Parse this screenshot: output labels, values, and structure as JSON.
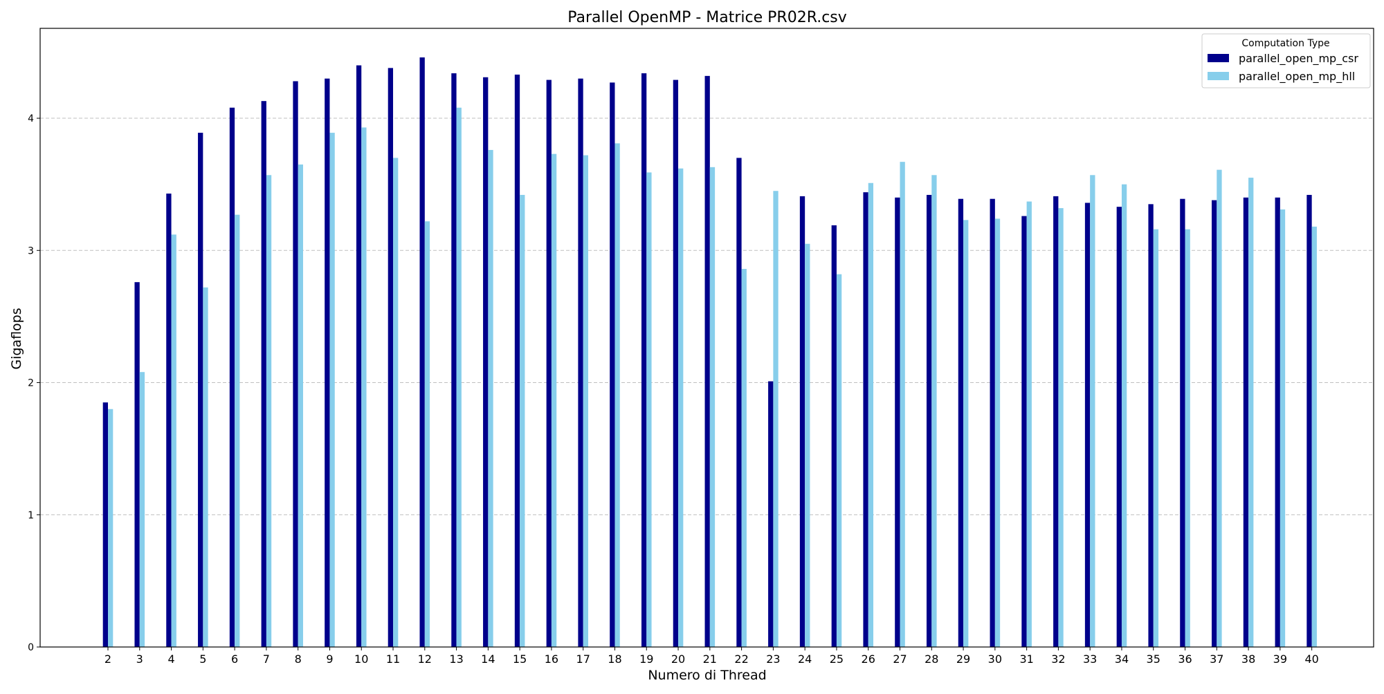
{
  "chart_data": {
    "type": "bar",
    "title": "Parallel OpenMP - Matrice PR02R.csv",
    "xlabel": "Numero di Thread",
    "ylabel": "Gigaflops",
    "ylim": [
      0,
      4.68
    ],
    "yticks": [
      0,
      1,
      2,
      3,
      4
    ],
    "grid": "y",
    "legend_placement": "top-right",
    "legend_title": "Computation Type",
    "categories": [
      "2",
      "3",
      "4",
      "5",
      "6",
      "7",
      "8",
      "9",
      "10",
      "11",
      "12",
      "13",
      "14",
      "15",
      "16",
      "17",
      "18",
      "19",
      "20",
      "21",
      "22",
      "23",
      "24",
      "25",
      "26",
      "27",
      "28",
      "29",
      "30",
      "31",
      "32",
      "33",
      "34",
      "35",
      "36",
      "37",
      "38",
      "39",
      "40"
    ],
    "series": [
      {
        "name": "parallel_open_mp_csr",
        "color": "#00008b",
        "values": [
          1.85,
          2.76,
          3.43,
          3.89,
          4.08,
          4.13,
          4.28,
          4.3,
          4.4,
          4.38,
          4.46,
          4.34,
          4.31,
          4.33,
          4.29,
          4.3,
          4.27,
          4.34,
          4.29,
          4.32,
          3.7,
          2.01,
          3.41,
          3.19,
          3.44,
          3.4,
          3.42,
          3.39,
          3.39,
          3.26,
          3.41,
          3.36,
          3.33,
          3.35,
          3.39,
          3.38,
          3.4,
          3.4,
          3.42
        ]
      },
      {
        "name": "parallel_open_mp_hll",
        "color": "#87ceeb",
        "values": [
          1.8,
          2.08,
          3.12,
          2.72,
          3.27,
          3.57,
          3.65,
          3.89,
          3.93,
          3.7,
          3.22,
          4.08,
          3.76,
          3.42,
          3.73,
          3.72,
          3.81,
          3.59,
          3.62,
          3.63,
          2.86,
          3.45,
          3.05,
          2.82,
          3.51,
          3.67,
          3.57,
          3.23,
          3.24,
          3.37,
          3.32,
          3.57,
          3.5,
          3.16,
          3.16,
          3.61,
          3.55,
          3.31,
          3.18
        ]
      }
    ]
  }
}
